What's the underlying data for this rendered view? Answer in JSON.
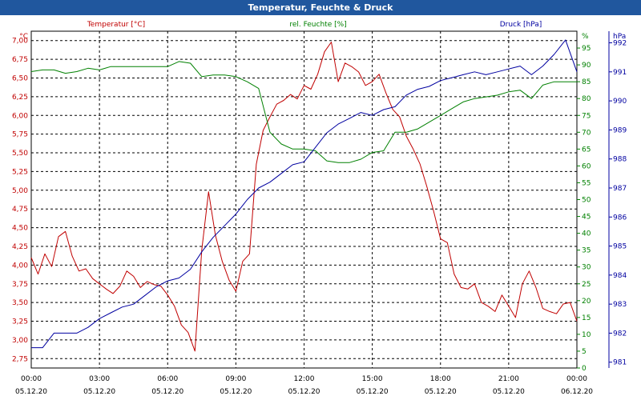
{
  "window": {
    "title": "Temperatur, Feuchte & Druck"
  },
  "colors": {
    "temperature": "#c00000",
    "humidity": "#008000",
    "pressure": "#0000a0",
    "grid": "#000000",
    "axis_text": "#000000"
  },
  "chart_data": {
    "type": "line",
    "title": "Temperatur, Feuchte & Druck",
    "grid": true,
    "x_ticks": [
      {
        "time": "00:00",
        "date": "05.12.20"
      },
      {
        "time": "03:00",
        "date": "05.12.20"
      },
      {
        "time": "06:00",
        "date": "05.12.20"
      },
      {
        "time": "09:00",
        "date": "05.12.20"
      },
      {
        "time": "12:00",
        "date": "05.12.20"
      },
      {
        "time": "15:00",
        "date": "05.12.20"
      },
      {
        "time": "18:00",
        "date": "05.12.20"
      },
      {
        "time": "21:00",
        "date": "05.12.20"
      },
      {
        "time": "00:00",
        "date": "06.12.20"
      }
    ],
    "x_range_hours": [
      0,
      24
    ],
    "axes": {
      "temperature": {
        "label": "Temperatur [°C]",
        "unit": "°C",
        "range": [
          2.625,
          7.125
        ],
        "ticks": [
          "2,75",
          "3,00",
          "3,25",
          "3,50",
          "3,75",
          "4,00",
          "4,25",
          "4,50",
          "4,75",
          "5,00",
          "5,25",
          "5,50",
          "5,75",
          "6,00",
          "6,25",
          "6,50",
          "6,75",
          "7,00"
        ]
      },
      "humidity": {
        "label": "rel. Feuchte [%]",
        "unit": "%",
        "range": [
          0,
          100
        ],
        "ticks": [
          "0",
          "5",
          "10",
          "15",
          "20",
          "25",
          "30",
          "35",
          "40",
          "45",
          "50",
          "55",
          "60",
          "65",
          "70",
          "75",
          "80",
          "85",
          "90",
          "95"
        ]
      },
      "pressure": {
        "label": "Druck [hPa]",
        "unit": "hPa",
        "range": [
          980.8,
          992.4
        ],
        "ticks": [
          "981",
          "982",
          "983",
          "984",
          "985",
          "986",
          "987",
          "988",
          "989",
          "990",
          "991",
          "992"
        ]
      }
    },
    "series": [
      {
        "name": "Temperatur [°C]",
        "axis": "temperature",
        "x": [
          0,
          0.3,
          0.6,
          0.9,
          1.2,
          1.5,
          1.8,
          2.1,
          2.4,
          2.7,
          3.0,
          3.3,
          3.6,
          3.9,
          4.2,
          4.5,
          4.8,
          5.1,
          5.4,
          5.7,
          6.0,
          6.3,
          6.6,
          6.9,
          7.2,
          7.5,
          7.8,
          8.1,
          8.4,
          8.7,
          9.0,
          9.3,
          9.6,
          9.9,
          10.2,
          10.5,
          10.8,
          11.1,
          11.4,
          11.7,
          12.0,
          12.3,
          12.6,
          12.9,
          13.2,
          13.5,
          13.8,
          14.1,
          14.4,
          14.7,
          15.0,
          15.3,
          15.6,
          15.9,
          16.2,
          16.5,
          16.8,
          17.1,
          17.4,
          17.7,
          18.0,
          18.3,
          18.6,
          18.9,
          19.2,
          19.5,
          19.8,
          20.1,
          20.4,
          20.7,
          21.0,
          21.3,
          21.6,
          21.9,
          22.2,
          22.5,
          22.8,
          23.1,
          23.4,
          23.7,
          24.0
        ],
        "values": [
          4.1,
          3.88,
          4.15,
          3.98,
          4.38,
          4.45,
          4.12,
          3.92,
          3.95,
          3.82,
          3.75,
          3.68,
          3.62,
          3.72,
          3.92,
          3.85,
          3.7,
          3.78,
          3.74,
          3.72,
          3.6,
          3.45,
          3.2,
          3.1,
          2.85,
          4.2,
          4.98,
          4.4,
          4.05,
          3.8,
          3.65,
          4.05,
          4.15,
          5.35,
          5.8,
          5.98,
          6.15,
          6.2,
          6.28,
          6.22,
          6.4,
          6.35,
          6.55,
          6.85,
          6.98,
          6.45,
          6.7,
          6.65,
          6.58,
          6.4,
          6.45,
          6.55,
          6.3,
          6.08,
          5.98,
          5.72,
          5.55,
          5.35,
          5.05,
          4.72,
          4.35,
          4.3,
          3.88,
          3.7,
          3.68,
          3.75,
          3.5,
          3.45,
          3.38,
          3.6,
          3.45,
          3.3,
          3.75,
          3.92,
          3.7,
          3.42,
          3.38,
          3.35,
          3.48,
          3.5,
          3.25
        ]
      },
      {
        "name": "rel. Feuchte [%]",
        "axis": "humidity",
        "x": [
          0,
          0.5,
          1.0,
          1.5,
          2.0,
          2.5,
          3.0,
          3.5,
          4.0,
          4.5,
          5.0,
          5.5,
          6.0,
          6.5,
          7.0,
          7.5,
          8.0,
          8.5,
          9.0,
          9.5,
          10.0,
          10.5,
          11.0,
          11.5,
          12.0,
          12.5,
          13.0,
          13.5,
          14.0,
          14.5,
          15.0,
          15.5,
          16.0,
          16.5,
          17.0,
          17.5,
          18.0,
          18.5,
          19.0,
          19.5,
          20.0,
          20.5,
          21.0,
          21.5,
          22.0,
          22.5,
          23.0,
          23.5,
          24.0
        ],
        "values": [
          88,
          88.5,
          88.5,
          87.5,
          88,
          89,
          88.5,
          89.5,
          89.5,
          89.5,
          89.5,
          89.5,
          89.5,
          91,
          90.5,
          86.5,
          87,
          87,
          86.5,
          85,
          83,
          70,
          66.5,
          65,
          65,
          64.5,
          61.5,
          61,
          61,
          62,
          64,
          64.5,
          70,
          70,
          71,
          73,
          75,
          77,
          79,
          80,
          80.5,
          81,
          82,
          82.5,
          80,
          84,
          85,
          85,
          85
        ]
      },
      {
        "name": "Druck [hPa]",
        "axis": "pressure",
        "x": [
          0,
          0.5,
          1.0,
          1.5,
          2.0,
          2.5,
          3.0,
          3.5,
          4.0,
          4.5,
          5.0,
          5.5,
          6.0,
          6.5,
          7.0,
          7.5,
          8.0,
          8.5,
          9.0,
          9.5,
          10.0,
          10.5,
          11.0,
          11.5,
          12.0,
          12.5,
          13.0,
          13.5,
          14.0,
          14.5,
          15.0,
          15.5,
          16.0,
          16.5,
          17.0,
          17.5,
          18.0,
          18.5,
          19.0,
          19.5,
          20.0,
          20.5,
          21.0,
          21.5,
          22.0,
          22.5,
          23.0,
          23.5,
          24.0
        ],
        "values": [
          981.5,
          981.5,
          982,
          982,
          982,
          982.2,
          982.5,
          982.7,
          982.9,
          983,
          983.3,
          983.6,
          983.8,
          983.9,
          984.2,
          984.8,
          985.3,
          985.7,
          986.1,
          986.6,
          987,
          987.2,
          987.5,
          987.8,
          987.9,
          988.4,
          988.9,
          989.2,
          989.4,
          989.6,
          989.5,
          989.7,
          989.8,
          990.2,
          990.4,
          990.5,
          990.7,
          990.8,
          990.9,
          991,
          990.9,
          991,
          991.1,
          991.2,
          990.9,
          991.2,
          991.6,
          992.1,
          991
        ]
      }
    ]
  }
}
